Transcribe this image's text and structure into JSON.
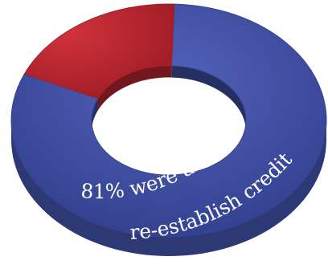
{
  "chart_data": {
    "type": "pie",
    "style": "donut-3d",
    "title": "",
    "slices": [
      {
        "label": "",
        "value": 81,
        "color": "#3f4fa3"
      },
      {
        "label": "",
        "value": 19,
        "color": "#bf2530"
      }
    ],
    "annotation": {
      "line1": "81% were able to",
      "line2": "re-establish credit"
    }
  }
}
